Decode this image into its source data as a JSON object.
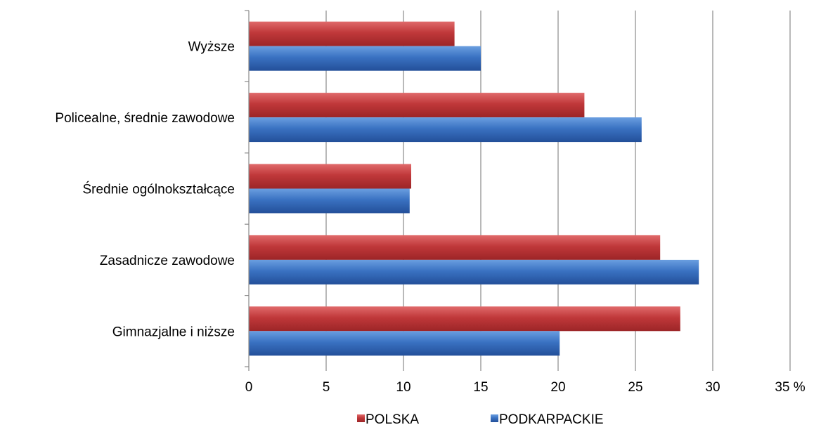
{
  "chart_data": {
    "type": "bar",
    "orientation": "horizontal",
    "title": "",
    "xlabel": "",
    "ylabel": "",
    "categories": [
      "Gimnazjalne i niższe",
      "Zasadnicze zawodowe",
      "Średnie ogólnokształcące",
      "Policealne, średnie zawodowe",
      "Wyższe"
    ],
    "series": [
      {
        "name": "POLSKA",
        "color": "#c0383a",
        "values": [
          27.9,
          26.6,
          10.5,
          21.7,
          13.3
        ]
      },
      {
        "name": "PODKARPACKIE",
        "color": "#3a72c2",
        "values": [
          20.1,
          29.1,
          10.4,
          25.4,
          15.0
        ]
      }
    ],
    "xlim": [
      0,
      35
    ],
    "xticks": [
      "0",
      "5",
      "10",
      "15",
      "20",
      "25",
      "30",
      "35 %"
    ],
    "grid": "vertical",
    "legend_position": "bottom"
  }
}
